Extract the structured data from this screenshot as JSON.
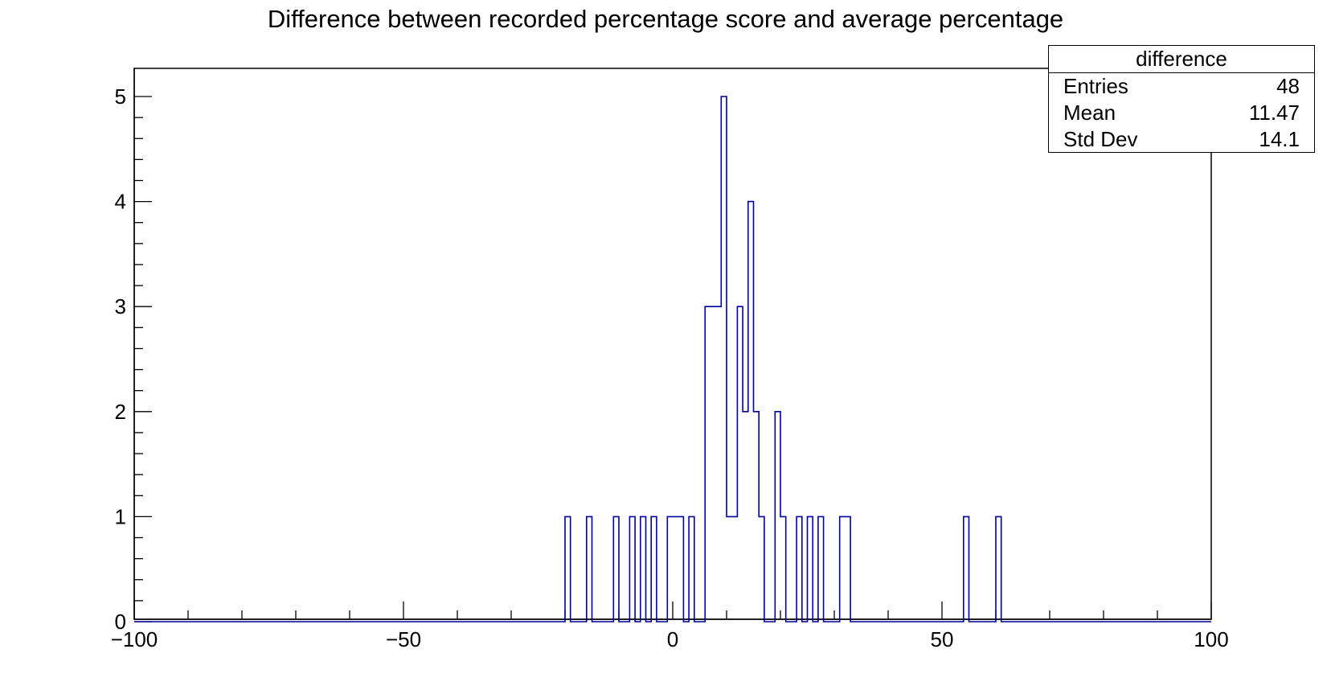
{
  "chart_data": {
    "type": "bar",
    "title": "Difference between recorded percentage score and average percentage",
    "xlabel": "",
    "ylabel": "",
    "xlim": [
      -100,
      100
    ],
    "ylim": [
      0,
      5.25
    ],
    "x_ticks": [
      -100,
      -50,
      0,
      50,
      100
    ],
    "x_tick_labels": [
      "−100",
      "−50",
      "0",
      "50",
      "100"
    ],
    "y_ticks": [
      0,
      1,
      2,
      3,
      4,
      5
    ],
    "bin_width": 1,
    "bins": [
      {
        "x": -20,
        "count": 1
      },
      {
        "x": -16,
        "count": 1
      },
      {
        "x": -11,
        "count": 1
      },
      {
        "x": -8,
        "count": 1
      },
      {
        "x": -6,
        "count": 1
      },
      {
        "x": -4,
        "count": 1
      },
      {
        "x": -1,
        "count": 1
      },
      {
        "x": 0,
        "count": 1
      },
      {
        "x": 1,
        "count": 1
      },
      {
        "x": 3,
        "count": 1
      },
      {
        "x": 6,
        "count": 3
      },
      {
        "x": 7,
        "count": 3
      },
      {
        "x": 8,
        "count": 3
      },
      {
        "x": 9,
        "count": 5
      },
      {
        "x": 10,
        "count": 1
      },
      {
        "x": 11,
        "count": 1
      },
      {
        "x": 12,
        "count": 3
      },
      {
        "x": 13,
        "count": 2
      },
      {
        "x": 14,
        "count": 4
      },
      {
        "x": 15,
        "count": 2
      },
      {
        "x": 16,
        "count": 1
      },
      {
        "x": 19,
        "count": 2
      },
      {
        "x": 20,
        "count": 1
      },
      {
        "x": 23,
        "count": 1
      },
      {
        "x": 25,
        "count": 1
      },
      {
        "x": 27,
        "count": 1
      },
      {
        "x": 31,
        "count": 1
      },
      {
        "x": 32,
        "count": 1
      },
      {
        "x": 54,
        "count": 1
      },
      {
        "x": 60,
        "count": 1
      }
    ],
    "line_color": "#00009c",
    "grid": false,
    "legend": "none"
  },
  "stats_box": {
    "name": "difference",
    "rows": [
      {
        "label": "Entries",
        "value": "48"
      },
      {
        "label": "Mean",
        "value": "11.47"
      },
      {
        "label": "Std Dev",
        "value": "14.1"
      }
    ]
  }
}
